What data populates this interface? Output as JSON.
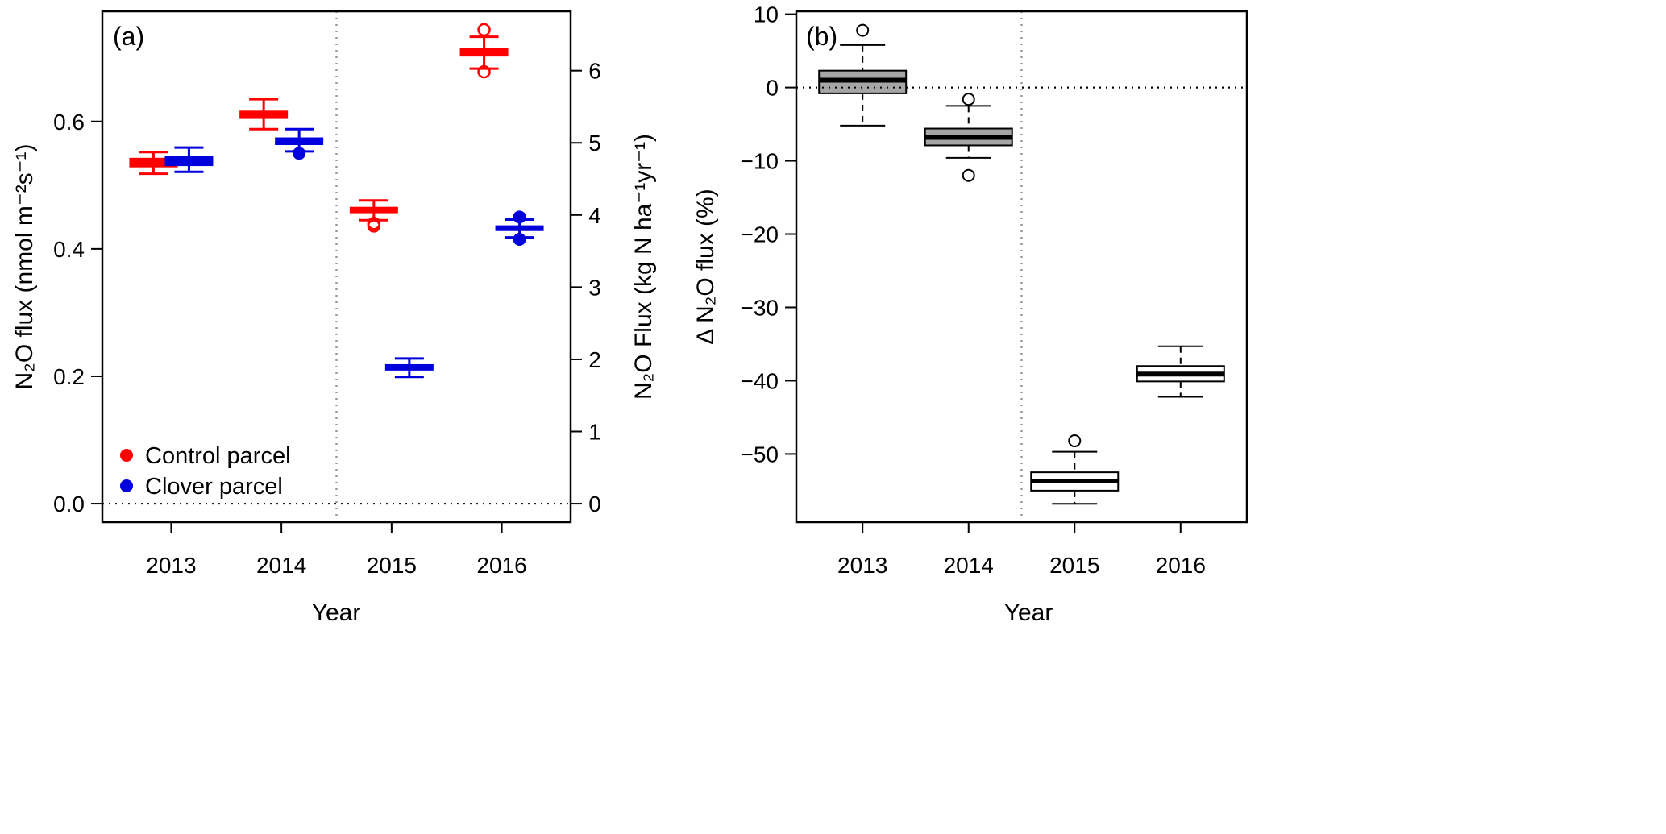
{
  "chart_data": [
    {
      "type": "box",
      "panel_label": "(a)",
      "xlabel": "Year",
      "ylabel": "N₂O flux (nmol m⁻²s⁻¹)",
      "ylabel_right": "N₂O Flux (kg N ha⁻¹yr⁻¹)",
      "categories": [
        "2013",
        "2014",
        "2015",
        "2016"
      ],
      "ylim": [
        -0.029,
        0.773
      ],
      "yticks": [
        0.0,
        0.2,
        0.4,
        0.6
      ],
      "ytick_labels": [
        "0.0",
        "0.2",
        "0.4",
        "0.6"
      ],
      "right_axis_factor": 0.1133,
      "right_yticks": [
        0,
        1,
        2,
        3,
        4,
        5,
        6
      ],
      "right_ytick_labels": [
        "0",
        "1",
        "2",
        "3",
        "4",
        "5",
        "6"
      ],
      "hline": 0,
      "vline_between": [
        2014,
        2015
      ],
      "legend": {
        "placement": "bottom-left",
        "entries": [
          "Control parcel",
          "Clover parcel"
        ]
      },
      "series": [
        {
          "name": "Control parcel",
          "color": "#ff0000",
          "outlier_style": "open",
          "boxes": [
            {
              "min": 0.518,
              "q1": 0.528,
              "median": 0.535,
              "q3": 0.543,
              "max": 0.552,
              "outliers": []
            },
            {
              "min": 0.588,
              "q1": 0.604,
              "median": 0.61,
              "q3": 0.617,
              "max": 0.635,
              "outliers": []
            },
            {
              "min": 0.445,
              "q1": 0.456,
              "median": 0.461,
              "q3": 0.466,
              "max": 0.476,
              "outliers": [
                0.44,
                0.436
              ]
            },
            {
              "min": 0.683,
              "q1": 0.702,
              "median": 0.708,
              "q3": 0.715,
              "max": 0.733,
              "outliers": [
                0.744,
                0.678
              ]
            }
          ]
        },
        {
          "name": "Clover parcel",
          "color": "#0000dd",
          "outlier_style": "filled",
          "boxes": [
            {
              "min": 0.521,
              "q1": 0.53,
              "median": 0.538,
              "q3": 0.546,
              "max": 0.559,
              "outliers": []
            },
            {
              "min": 0.553,
              "q1": 0.563,
              "median": 0.57,
              "q3": 0.575,
              "max": 0.588,
              "outliers": [
                0.55
              ]
            },
            {
              "min": 0.199,
              "q1": 0.209,
              "median": 0.214,
              "q3": 0.219,
              "max": 0.228,
              "outliers": []
            },
            {
              "min": 0.418,
              "q1": 0.428,
              "median": 0.433,
              "q3": 0.437,
              "max": 0.446,
              "outliers": [
                0.45,
                0.415
              ]
            }
          ]
        }
      ]
    },
    {
      "type": "box",
      "panel_label": "(b)",
      "xlabel": "Year",
      "ylabel": "Δ N₂O flux (%)",
      "categories": [
        "2013",
        "2014",
        "2015",
        "2016"
      ],
      "ylim": [
        -59.3,
        10.4
      ],
      "yticks": [
        10,
        0,
        -10,
        -20,
        -30,
        -40,
        -50
      ],
      "ytick_labels": [
        "10",
        "0",
        "−10",
        "−20",
        "−30",
        "−40",
        "−50"
      ],
      "hline": 0,
      "vline_between": [
        2014,
        2015
      ],
      "box_fills": [
        "#a6a6a6",
        "#a6a6a6",
        "#ffffff",
        "#ffffff"
      ],
      "boxes": [
        {
          "min": -5.2,
          "q1": -0.8,
          "median": 1.0,
          "q3": 2.3,
          "max": 5.8,
          "outliers": [
            7.8
          ]
        },
        {
          "min": -9.6,
          "q1": -7.9,
          "median": -6.8,
          "q3": -5.6,
          "max": -2.5,
          "outliers": [
            -1.6,
            -12.0
          ]
        },
        {
          "min": -56.8,
          "q1": -55.0,
          "median": -53.7,
          "q3": -52.5,
          "max": -49.7,
          "outliers": [
            -48.2
          ]
        },
        {
          "min": -42.2,
          "q1": -40.1,
          "median": -39.1,
          "q3": -38.0,
          "max": -35.3,
          "outliers": []
        }
      ]
    }
  ]
}
